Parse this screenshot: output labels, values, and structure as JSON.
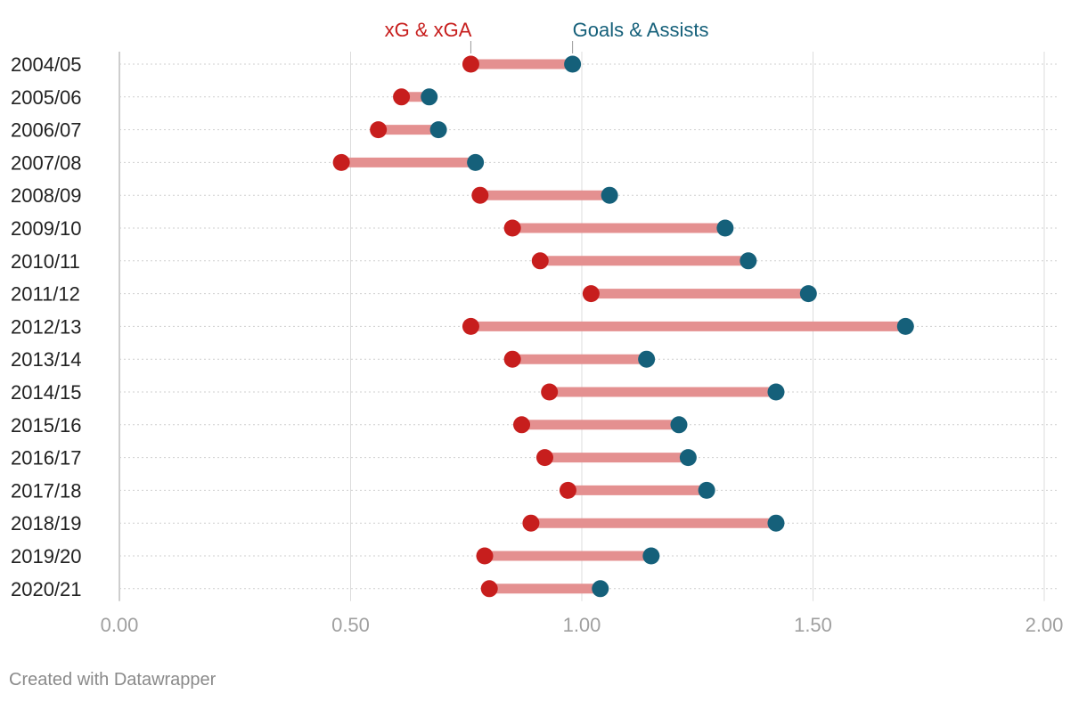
{
  "chart_data": {
    "type": "dumbbell",
    "xlim": [
      0,
      2
    ],
    "x_ticks": [
      "0.00",
      "0.50",
      "1.00",
      "1.50",
      "2.00"
    ],
    "x_tick_values": [
      0,
      0.5,
      1,
      1.5,
      2
    ],
    "legend": {
      "xg_label": "xG & xGA",
      "ga_label": "Goals & Assists"
    },
    "categories": [
      "2004/05",
      "2005/06",
      "2006/07",
      "2007/08",
      "2008/09",
      "2009/10",
      "2010/11",
      "2011/12",
      "2012/13",
      "2013/14",
      "2014/15",
      "2015/16",
      "2016/17",
      "2017/18",
      "2018/19",
      "2019/20",
      "2020/21"
    ],
    "series": [
      {
        "name": "xG & xGA",
        "values": [
          0.76,
          0.61,
          0.56,
          0.48,
          0.78,
          0.85,
          0.91,
          1.02,
          0.76,
          0.85,
          0.93,
          0.87,
          0.92,
          0.97,
          0.89,
          0.79,
          0.8
        ]
      },
      {
        "name": "Goals & Assists",
        "values": [
          0.98,
          0.67,
          0.69,
          0.77,
          1.06,
          1.31,
          1.36,
          1.49,
          1.7,
          1.14,
          1.42,
          1.21,
          1.23,
          1.27,
          1.42,
          1.15,
          1.04
        ]
      }
    ],
    "colors": {
      "xg": "#c71e1d",
      "ga": "#15607a",
      "bar": "#e49090",
      "grid": "#dcdcdc",
      "tick": "#a0a0a0"
    }
  },
  "footer": {
    "credit": "Created with Datawrapper"
  }
}
